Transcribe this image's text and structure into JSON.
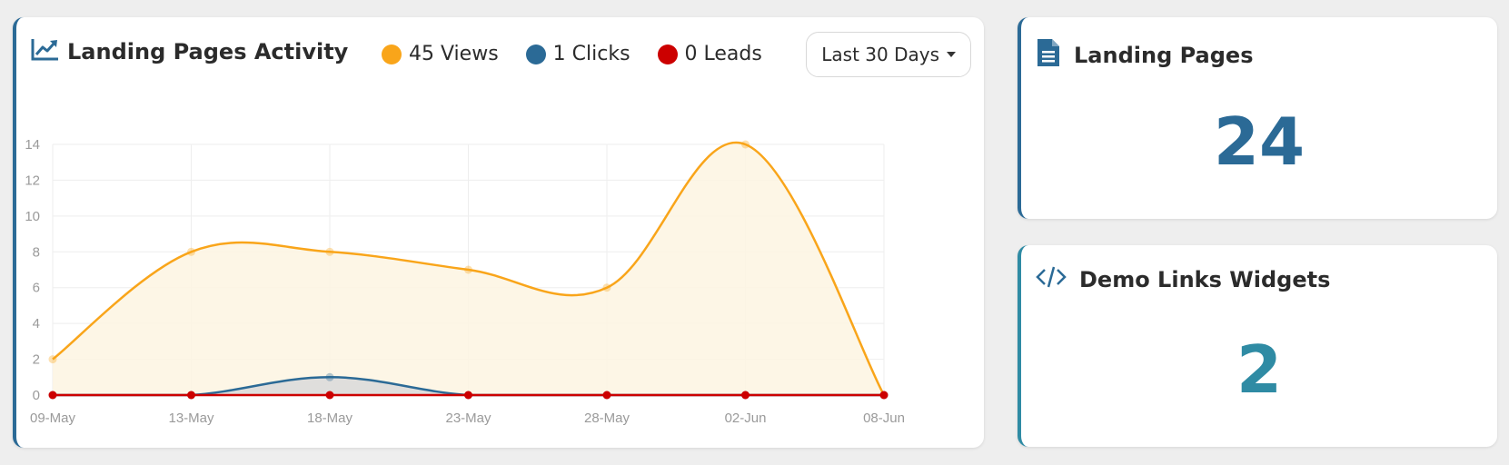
{
  "activity": {
    "title": "Landing Pages Activity",
    "icon": "line-chart-icon",
    "legend": [
      {
        "label": "45 Views",
        "color": "#f9a51a"
      },
      {
        "label": "1 Clicks",
        "color": "#2b6a96"
      },
      {
        "label": "0 Leads",
        "color": "#cc0000"
      }
    ],
    "range_label": "Last 30 Days"
  },
  "chart_data": {
    "type": "line",
    "categories": [
      "09-May",
      "13-May",
      "18-May",
      "23-May",
      "28-May",
      "02-Jun",
      "08-Jun"
    ],
    "series": [
      {
        "name": "Views",
        "values": [
          2,
          8,
          8,
          7,
          6,
          14,
          0
        ],
        "color": "#f9a51a",
        "fill": "#fdf4e2"
      },
      {
        "name": "Clicks",
        "values": [
          0,
          0,
          1,
          0,
          0,
          0,
          0
        ],
        "color": "#2b6a96",
        "fill": "#d9d9d9"
      },
      {
        "name": "Leads",
        "values": [
          0,
          0,
          0,
          0,
          0,
          0,
          0
        ],
        "color": "#cc0000",
        "fill": "none"
      }
    ],
    "yticks": [
      0,
      2,
      4,
      6,
      8,
      10,
      12,
      14
    ],
    "ylim": [
      0,
      14
    ],
    "grid": true
  },
  "landing_pages": {
    "title": "Landing Pages",
    "icon": "document-icon",
    "value": "24",
    "color": "#2b6a96"
  },
  "demo_links": {
    "title": "Demo Links Widgets",
    "icon": "code-icon",
    "value": "2",
    "color": "#2f8ba4"
  }
}
